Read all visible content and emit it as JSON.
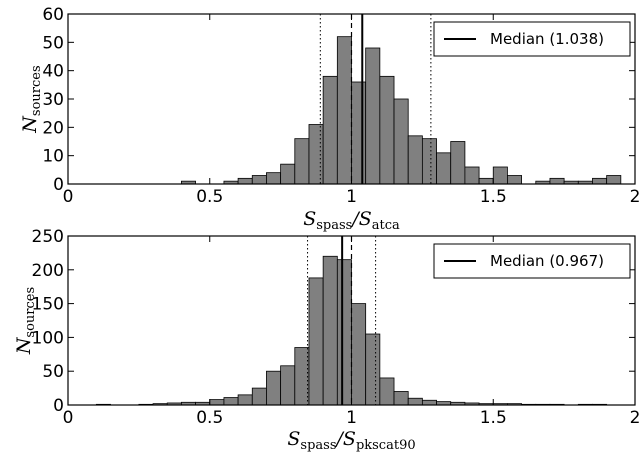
{
  "chart_data": [
    {
      "type": "bar",
      "subtype": "histogram",
      "bin_width": 0.05,
      "bins": [
        0.0,
        0.05,
        0.1,
        0.15,
        0.2,
        0.25,
        0.3,
        0.35,
        0.4,
        0.45,
        0.5,
        0.55,
        0.6,
        0.65,
        0.7,
        0.75,
        0.8,
        0.85,
        0.9,
        0.95,
        1.0,
        1.05,
        1.1,
        1.15,
        1.2,
        1.25,
        1.3,
        1.35,
        1.4,
        1.45,
        1.5,
        1.55,
        1.6,
        1.65,
        1.7,
        1.75,
        1.8,
        1.85,
        1.9,
        1.95
      ],
      "counts": [
        0,
        0,
        0,
        0,
        0,
        0,
        0,
        0,
        1,
        0,
        0,
        1,
        2,
        3,
        4,
        7,
        16,
        21,
        38,
        52,
        36,
        48,
        38,
        30,
        17,
        16,
        11,
        15,
        6,
        2,
        6,
        3,
        0,
        1,
        2,
        1,
        1,
        2,
        3,
        0
      ],
      "xlim": [
        0,
        2
      ],
      "ylim": [
        0,
        60
      ],
      "xticks": [
        "0",
        "0.5",
        "1",
        "1.5",
        "2"
      ],
      "yticks": [
        "0",
        "10",
        "20",
        "30",
        "40",
        "50",
        "60"
      ],
      "xlabel": {
        "main": "S",
        "sub1": "spass",
        "sep": "/S",
        "sub2": "atca"
      },
      "ylabel": {
        "main": "N",
        "sub": "sources"
      },
      "median": 1.038,
      "reference_line": 1.0,
      "dotted_lines": [
        0.89,
        1.28
      ],
      "legend": {
        "label": "Median (1.038)",
        "position": "top-right"
      },
      "bar_color": "#808080"
    },
    {
      "type": "bar",
      "subtype": "histogram",
      "bin_width": 0.05,
      "bins": [
        0.0,
        0.05,
        0.1,
        0.15,
        0.2,
        0.25,
        0.3,
        0.35,
        0.4,
        0.45,
        0.5,
        0.55,
        0.6,
        0.65,
        0.7,
        0.75,
        0.8,
        0.85,
        0.9,
        0.95,
        1.0,
        1.05,
        1.1,
        1.15,
        1.2,
        1.25,
        1.3,
        1.35,
        1.4,
        1.45,
        1.5,
        1.55,
        1.6,
        1.65,
        1.7,
        1.75,
        1.8,
        1.85,
        1.9,
        1.95
      ],
      "counts": [
        0,
        0,
        1,
        0,
        0,
        1,
        2,
        3,
        4,
        4,
        8,
        11,
        15,
        25,
        50,
        58,
        85,
        188,
        220,
        215,
        150,
        105,
        40,
        20,
        10,
        7,
        5,
        4,
        3,
        2,
        2,
        2,
        1,
        1,
        1,
        0,
        1,
        1,
        0,
        0
      ],
      "xlim": [
        0,
        2
      ],
      "ylim": [
        0,
        250
      ],
      "xticks": [
        "0",
        "0.5",
        "1",
        "1.5",
        "2"
      ],
      "yticks": [
        "0",
        "50",
        "100",
        "150",
        "200",
        "250"
      ],
      "xlabel": {
        "main": "S",
        "sub1": "spass",
        "sep": "/S",
        "sub2": "pkscat90"
      },
      "ylabel": {
        "main": "N",
        "sub": "sources"
      },
      "median": 0.967,
      "reference_line": 1.0,
      "dotted_lines": [
        0.845,
        1.085
      ],
      "legend": {
        "label": "Median (0.967)",
        "position": "top-right"
      },
      "bar_color": "#808080"
    }
  ]
}
